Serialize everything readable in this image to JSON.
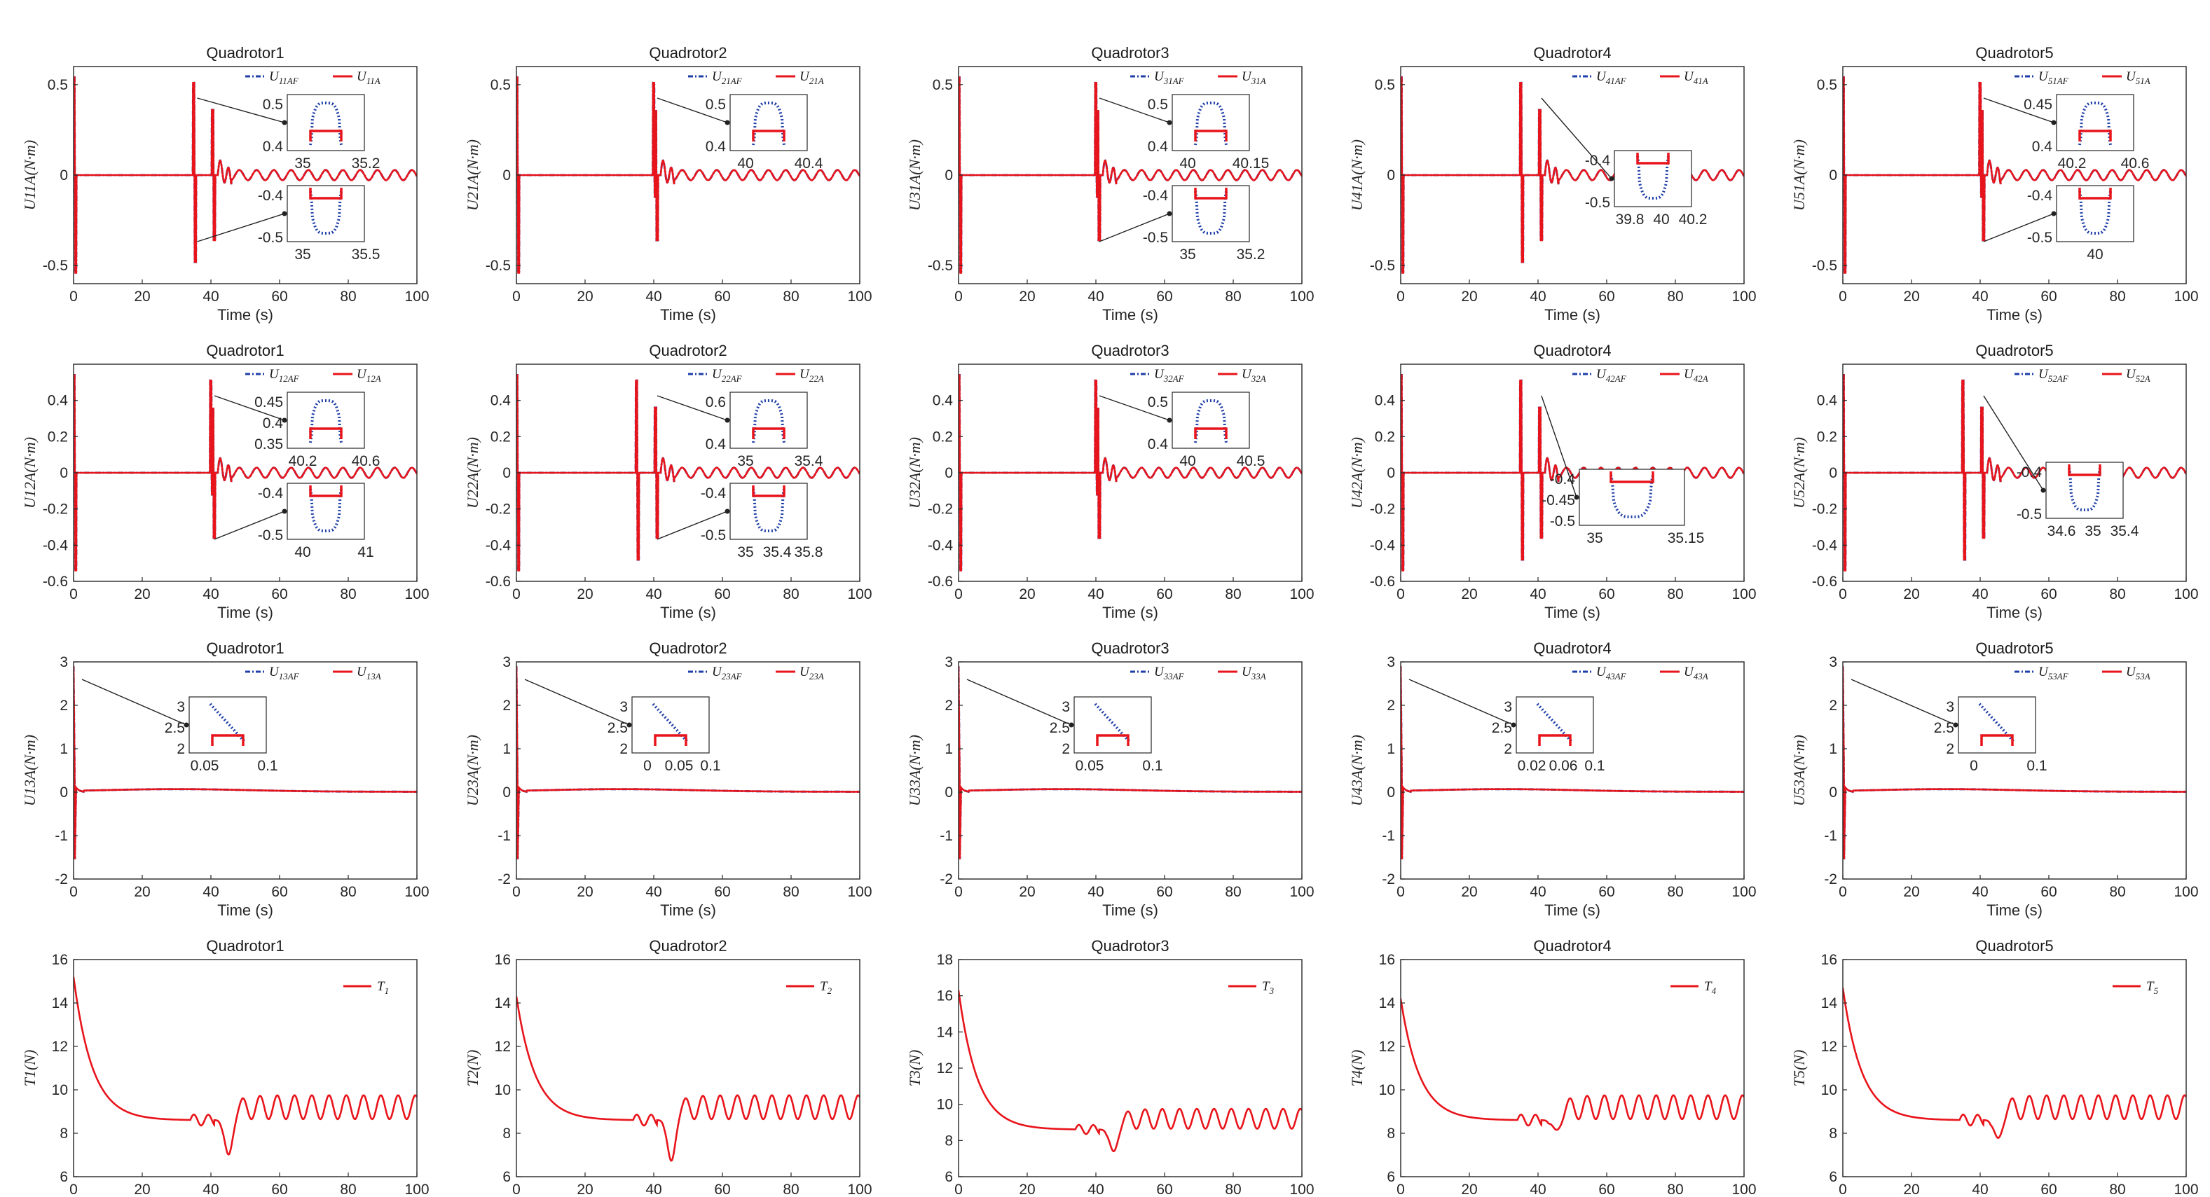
{
  "figure": {
    "xlabel": "Time (s)",
    "line_colors": {
      "actual": "#e8141b",
      "filtered": "#1f3fa8",
      "axis": "#262626"
    }
  },
  "chart_data": [
    {
      "type": "line",
      "row": 0,
      "col": 0,
      "title": "Quadrotor1",
      "ylabel": "U_{11A}(N·m)",
      "ylabel_plain": "U11A(N·m)",
      "xlim": [
        0,
        100
      ],
      "ylim": [
        -0.6,
        0.6
      ],
      "xticks": [
        "0",
        "20",
        "40",
        "60",
        "80",
        "100"
      ],
      "yticks": [
        "-0.5",
        "0",
        "0.5"
      ],
      "series": [
        {
          "name": "U11AF",
          "values_desc": "control signal with spikes at 0, 35, 40 s and small oscillation after 40 s"
        },
        {
          "name": "U11A"
        }
      ],
      "legend": [
        "U11AF",
        "U11A"
      ],
      "insets": [
        {
          "xticks": [
            "35",
            "35.2"
          ],
          "yticks": [
            "0.5",
            "0.4"
          ]
        },
        {
          "xticks": [
            "35",
            "35.5"
          ],
          "yticks": [
            "-0.4",
            "-0.5"
          ]
        }
      ]
    },
    {
      "type": "line",
      "row": 0,
      "col": 1,
      "title": "Quadrotor2",
      "ylabel_plain": "U21A(N·m)",
      "xlim": [
        0,
        100
      ],
      "ylim": [
        -0.6,
        0.6
      ],
      "xticks": [
        "0",
        "20",
        "40",
        "60",
        "80",
        "100"
      ],
      "yticks": [
        "-0.5",
        "0",
        "0.5"
      ],
      "legend": [
        "U21AF",
        "U21A"
      ],
      "insets": [
        {
          "xticks": [
            "40",
            "40.4"
          ],
          "yticks": [
            "0.5",
            "0.4"
          ]
        }
      ]
    },
    {
      "type": "line",
      "row": 0,
      "col": 2,
      "title": "Quadrotor3",
      "ylabel_plain": "U31A(N·m)",
      "xlim": [
        0,
        100
      ],
      "ylim": [
        -0.6,
        0.6
      ],
      "xticks": [
        "0",
        "20",
        "40",
        "60",
        "80",
        "100"
      ],
      "yticks": [
        "-0.5",
        "0",
        "0.5"
      ],
      "legend": [
        "U31AF",
        "U31A"
      ],
      "insets": [
        {
          "xticks": [
            "40",
            "40.15"
          ],
          "yticks": [
            "0.5",
            "0.4"
          ]
        },
        {
          "xticks": [
            "35",
            "35.2"
          ],
          "yticks": [
            "-0.4",
            "-0.5"
          ]
        }
      ]
    },
    {
      "type": "line",
      "row": 0,
      "col": 3,
      "title": "Quadrotor4",
      "ylabel_plain": "U41A(N·m)",
      "xlim": [
        0,
        100
      ],
      "ylim": [
        -0.6,
        0.6
      ],
      "xticks": [
        "0",
        "20",
        "40",
        "60",
        "80",
        "100"
      ],
      "yticks": [
        "-0.5",
        "0",
        "0.5"
      ],
      "legend": [
        "U41AF",
        "U41A"
      ],
      "insets": [
        {
          "xticks": [
            "39.8",
            "40",
            "40.2"
          ],
          "yticks": [
            "-0.4",
            "-0.5"
          ]
        }
      ]
    },
    {
      "type": "line",
      "row": 0,
      "col": 4,
      "title": "Quadrotor5",
      "ylabel_plain": "U51A(N·m)",
      "xlim": [
        0,
        100
      ],
      "ylim": [
        -0.6,
        0.6
      ],
      "xticks": [
        "0",
        "20",
        "40",
        "60",
        "80",
        "100"
      ],
      "yticks": [
        "-0.5",
        "0",
        "0.5"
      ],
      "legend": [
        "U51AF",
        "U51A"
      ],
      "insets": [
        {
          "xticks": [
            "40.2",
            "40.6"
          ],
          "yticks": [
            "0.45",
            "0.4"
          ]
        },
        {
          "xticks": [
            "40"
          ],
          "yticks": [
            "-0.4",
            "-0.5"
          ]
        }
      ]
    },
    {
      "type": "line",
      "row": 1,
      "col": 0,
      "title": "Quadrotor1",
      "ylabel_plain": "U12A(N·m)",
      "xlim": [
        0,
        100
      ],
      "ylim": [
        -0.6,
        0.6
      ],
      "xticks": [
        "0",
        "20",
        "40",
        "60",
        "80",
        "100"
      ],
      "yticks": [
        "-0.6",
        "-0.4",
        "-0.2",
        "0",
        "0.2",
        "0.4"
      ],
      "legend": [
        "U12AF",
        "U12A"
      ],
      "insets": [
        {
          "xticks": [
            "40.2",
            "40.6"
          ],
          "yticks": [
            "0.45",
            "0.4",
            "0.35"
          ]
        },
        {
          "xticks": [
            "40",
            "41"
          ],
          "yticks": [
            "-0.4",
            "-0.5"
          ]
        }
      ]
    },
    {
      "type": "line",
      "row": 1,
      "col": 1,
      "title": "Quadrotor2",
      "ylabel_plain": "U22A(N·m)",
      "xlim": [
        0,
        100
      ],
      "ylim": [
        -0.6,
        0.6
      ],
      "xticks": [
        "0",
        "20",
        "40",
        "60",
        "80",
        "100"
      ],
      "yticks": [
        "-0.6",
        "-0.4",
        "-0.2",
        "0",
        "0.2",
        "0.4"
      ],
      "legend": [
        "U22AF",
        "U22A"
      ],
      "insets": [
        {
          "xticks": [
            "35",
            "35.4"
          ],
          "yticks": [
            "0.6",
            "0.4"
          ]
        },
        {
          "xticks": [
            "35",
            "35.4",
            "35.8"
          ],
          "yticks": [
            "-0.4",
            "-0.5"
          ]
        }
      ]
    },
    {
      "type": "line",
      "row": 1,
      "col": 2,
      "title": "Quadrotor3",
      "ylabel_plain": "U32A(N·m)",
      "xlim": [
        0,
        100
      ],
      "ylim": [
        -0.6,
        0.6
      ],
      "xticks": [
        "0",
        "20",
        "40",
        "60",
        "80",
        "100"
      ],
      "yticks": [
        "-0.6",
        "-0.4",
        "-0.2",
        "0",
        "0.2",
        "0.4"
      ],
      "legend": [
        "U32AF",
        "U32A"
      ],
      "insets": [
        {
          "xticks": [
            "40",
            "40.5"
          ],
          "yticks": [
            "0.5",
            "0.4"
          ]
        }
      ]
    },
    {
      "type": "line",
      "row": 1,
      "col": 3,
      "title": "Quadrotor4",
      "ylabel_plain": "U42A(N·m)",
      "xlim": [
        0,
        100
      ],
      "ylim": [
        -0.6,
        0.6
      ],
      "xticks": [
        "0",
        "20",
        "40",
        "60",
        "80",
        "100"
      ],
      "yticks": [
        "-0.6",
        "-0.4",
        "-0.2",
        "0",
        "0.2",
        "0.4"
      ],
      "legend": [
        "U42AF",
        "U42A"
      ],
      "insets": [
        {
          "xticks": [
            "35",
            "35.15"
          ],
          "yticks": [
            "-0.4",
            "-0.45",
            "-0.5"
          ]
        }
      ]
    },
    {
      "type": "line",
      "row": 1,
      "col": 4,
      "title": "Quadrotor5",
      "ylabel_plain": "U52A(N·m)",
      "xlim": [
        0,
        100
      ],
      "ylim": [
        -0.6,
        0.6
      ],
      "xticks": [
        "0",
        "20",
        "40",
        "60",
        "80",
        "100"
      ],
      "yticks": [
        "-0.6",
        "-0.4",
        "-0.2",
        "0",
        "0.2",
        "0.4"
      ],
      "legend": [
        "U52AF",
        "U52A"
      ],
      "insets": [
        {
          "xticks": [
            "34.6",
            "35",
            "35.4"
          ],
          "yticks": [
            "-0.4",
            "-0.5"
          ]
        }
      ]
    },
    {
      "type": "line",
      "row": 2,
      "col": 0,
      "title": "Quadrotor1",
      "ylabel_plain": "U13A(N·m)",
      "xlim": [
        0,
        100
      ],
      "ylim": [
        -2,
        3
      ],
      "xticks": [
        "0",
        "20",
        "40",
        "60",
        "80",
        "100"
      ],
      "yticks": [
        "-2",
        "-1",
        "0",
        "1",
        "2",
        "3"
      ],
      "legend": [
        "U13AF",
        "U13A"
      ],
      "insets": [
        {
          "xticks": [
            "0.05",
            "0.1"
          ],
          "yticks": [
            "3",
            "2.5",
            "2"
          ]
        }
      ]
    },
    {
      "type": "line",
      "row": 2,
      "col": 1,
      "title": "Quadrotor2",
      "ylabel_plain": "U23A(N·m)",
      "xlim": [
        0,
        100
      ],
      "ylim": [
        -2,
        3
      ],
      "xticks": [
        "0",
        "20",
        "40",
        "60",
        "80",
        "100"
      ],
      "yticks": [
        "-2",
        "-1",
        "0",
        "1",
        "2",
        "3"
      ],
      "legend": [
        "U23AF",
        "U23A"
      ],
      "insets": [
        {
          "xticks": [
            "0",
            "0.05",
            "0.1"
          ],
          "yticks": [
            "3",
            "2.5",
            "2"
          ]
        }
      ]
    },
    {
      "type": "line",
      "row": 2,
      "col": 2,
      "title": "Quadrotor3",
      "ylabel_plain": "U33A(N·m)",
      "xlim": [
        0,
        100
      ],
      "ylim": [
        -2,
        3
      ],
      "xticks": [
        "0",
        "20",
        "40",
        "60",
        "80",
        "100"
      ],
      "yticks": [
        "-2",
        "-1",
        "0",
        "1",
        "2",
        "3"
      ],
      "legend": [
        "U33AF",
        "U33A"
      ],
      "insets": [
        {
          "xticks": [
            "0.05",
            "0.1"
          ],
          "yticks": [
            "3",
            "2.5",
            "2"
          ]
        }
      ]
    },
    {
      "type": "line",
      "row": 2,
      "col": 3,
      "title": "Quadrotor4",
      "ylabel_plain": "U43A(N·m)",
      "xlim": [
        0,
        100
      ],
      "ylim": [
        -2,
        3
      ],
      "xticks": [
        "0",
        "20",
        "40",
        "60",
        "80",
        "100"
      ],
      "yticks": [
        "-2",
        "-1",
        "0",
        "1",
        "2",
        "3"
      ],
      "legend": [
        "U43AF",
        "U43A"
      ],
      "insets": [
        {
          "xticks": [
            "0.02",
            "0.06",
            "0.1"
          ],
          "yticks": [
            "3",
            "2.5",
            "2"
          ]
        }
      ]
    },
    {
      "type": "line",
      "row": 2,
      "col": 4,
      "title": "Quadrotor5",
      "ylabel_plain": "U53A(N·m)",
      "xlim": [
        0,
        100
      ],
      "ylim": [
        -2,
        3
      ],
      "xticks": [
        "0",
        "20",
        "40",
        "60",
        "80",
        "100"
      ],
      "yticks": [
        "-2",
        "-1",
        "0",
        "1",
        "2",
        "3"
      ],
      "legend": [
        "U53AF",
        "U53A"
      ],
      "insets": [
        {
          "xticks": [
            "0",
            "0.1"
          ],
          "yticks": [
            "3",
            "2.5",
            "2"
          ]
        }
      ]
    },
    {
      "type": "line",
      "row": 3,
      "col": 0,
      "title": "Quadrotor1",
      "ylabel_plain": "T1(N)",
      "xlim": [
        0,
        100
      ],
      "ylim": [
        6,
        16
      ],
      "xticks": [
        "0",
        "20",
        "40",
        "60",
        "80",
        "100"
      ],
      "yticks": [
        "6",
        "8",
        "10",
        "12",
        "14",
        "16"
      ],
      "legend": [
        "T1"
      ],
      "tmax": 15.2,
      "tmin": 6.5,
      "insets": []
    },
    {
      "type": "line",
      "row": 3,
      "col": 1,
      "title": "Quadrotor2",
      "ylabel_plain": "T2(N)",
      "xlim": [
        0,
        100
      ],
      "ylim": [
        6,
        16
      ],
      "xticks": [
        "0",
        "20",
        "40",
        "60",
        "80",
        "100"
      ],
      "yticks": [
        "6",
        "8",
        "10",
        "12",
        "14",
        "16"
      ],
      "legend": [
        "T2"
      ],
      "tmax": 14.3,
      "tmin": 6.2,
      "insets": []
    },
    {
      "type": "line",
      "row": 3,
      "col": 2,
      "title": "Quadrotor3",
      "ylabel_plain": "T3(N)",
      "xlim": [
        0,
        100
      ],
      "ylim": [
        6,
        18
      ],
      "xticks": [
        "0",
        "20",
        "40",
        "60",
        "80",
        "100"
      ],
      "yticks": [
        "6",
        "8",
        "10",
        "12",
        "14",
        "16",
        "18"
      ],
      "legend": [
        "T3"
      ],
      "tmax": 16.3,
      "tmin": 6.9,
      "insets": []
    },
    {
      "type": "line",
      "row": 3,
      "col": 3,
      "title": "Quadrotor4",
      "ylabel_plain": "T4(N)",
      "xlim": [
        0,
        100
      ],
      "ylim": [
        6,
        16
      ],
      "xticks": [
        "0",
        "20",
        "40",
        "60",
        "80",
        "100"
      ],
      "yticks": [
        "6",
        "8",
        "10",
        "12",
        "14",
        "16"
      ],
      "legend": [
        "T4"
      ],
      "tmax": 14.2,
      "tmin": 7.7,
      "insets": []
    },
    {
      "type": "line",
      "row": 3,
      "col": 4,
      "title": "Quadrotor5",
      "ylabel_plain": "T5(N)",
      "xlim": [
        0,
        100
      ],
      "ylim": [
        6,
        16
      ],
      "xticks": [
        "0",
        "20",
        "40",
        "60",
        "80",
        "100"
      ],
      "yticks": [
        "6",
        "8",
        "10",
        "12",
        "14",
        "16"
      ],
      "legend": [
        "T5"
      ],
      "tmax": 14.7,
      "tmin": 7.3,
      "insets": []
    }
  ]
}
